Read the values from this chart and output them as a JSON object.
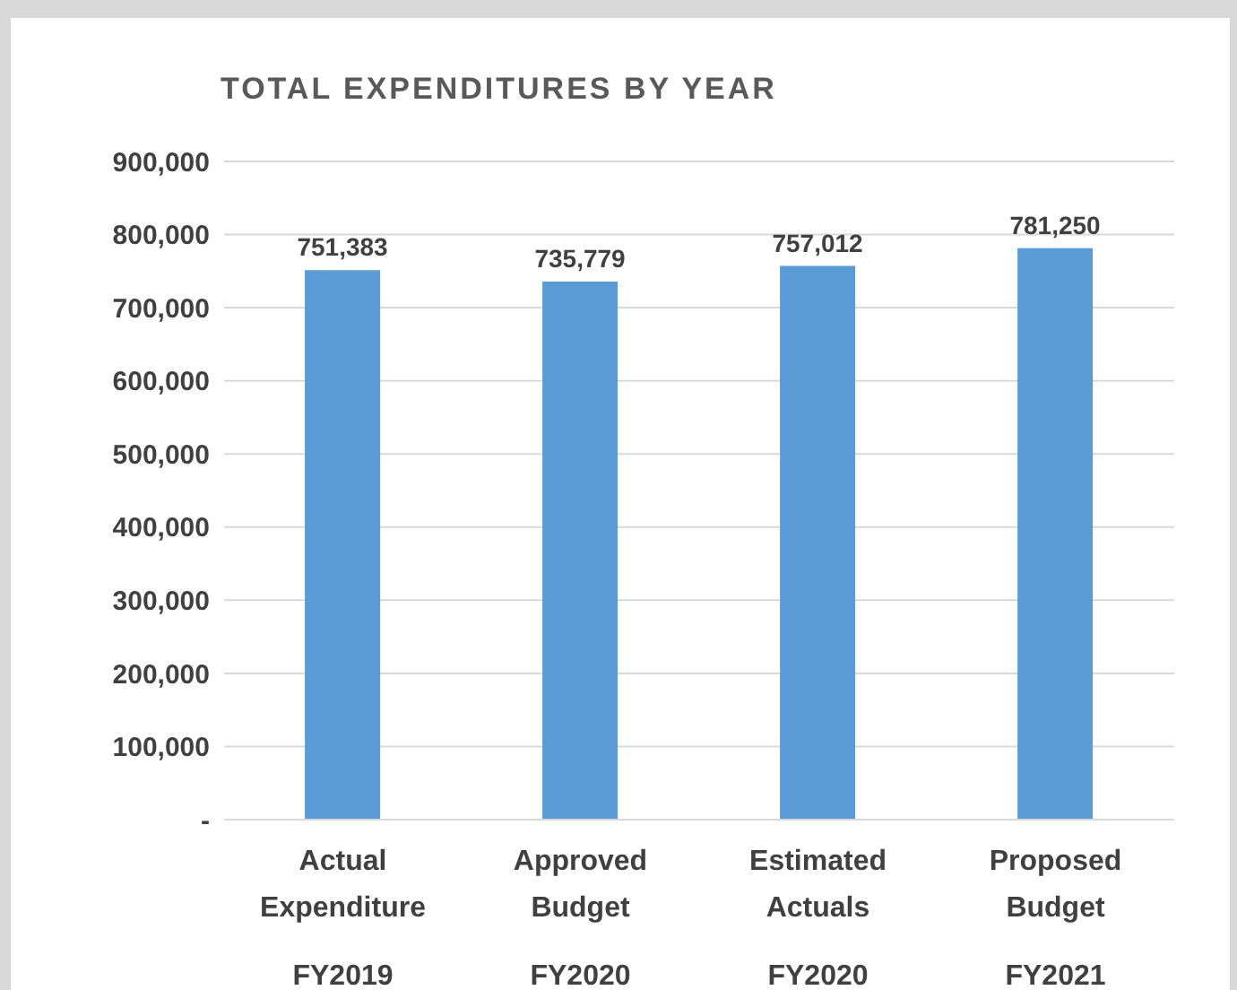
{
  "chart_data": {
    "type": "bar",
    "title": "TOTAL EXPENDITURES BY YEAR",
    "categories": [
      "Actual\nExpenditure\nFY2019",
      "Approved\nBudget\nFY2020",
      "Estimated\nActuals\nFY2020",
      "Proposed\nBudget\nFY2021"
    ],
    "values": [
      751383,
      735779,
      757012,
      781250
    ],
    "color": "#5b9bd5",
    "ylim": [
      0,
      900000
    ],
    "yticks": [
      {
        "value": 0,
        "label": "-"
      },
      {
        "value": 100000,
        "label": "100,000"
      },
      {
        "value": 200000,
        "label": "200,000"
      },
      {
        "value": 300000,
        "label": "300,000"
      },
      {
        "value": 400000,
        "label": "400,000"
      },
      {
        "value": 500000,
        "label": "500,000"
      },
      {
        "value": 600000,
        "label": "600,000"
      },
      {
        "value": 700000,
        "label": "700,000"
      },
      {
        "value": 800000,
        "label": "800,000"
      },
      {
        "value": 900000,
        "label": "900,000"
      }
    ],
    "value_labels": [
      "751,383",
      "735,779",
      "757,012",
      "781,250"
    ],
    "grid": "y",
    "legend": false
  }
}
